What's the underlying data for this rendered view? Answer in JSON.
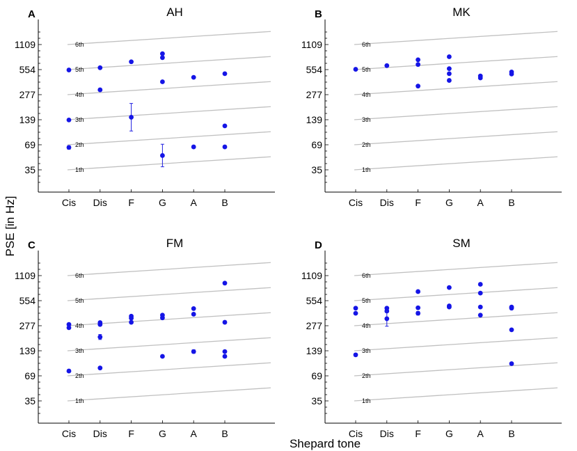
{
  "figure": {
    "ylabel": "PSE [in Hz]",
    "xlabel": "Shepard tone"
  },
  "chart_data": [
    {
      "type": "scatter",
      "letter": "A",
      "title": "AH",
      "categories": [
        "Cis",
        "Dis",
        "F",
        "G",
        "A",
        "B"
      ],
      "yticks": [
        "35",
        "69",
        "139",
        "277",
        "554",
        "1109"
      ],
      "octave_labels": [
        "1th",
        "2th",
        "3th",
        "4th",
        "5th",
        "6th"
      ],
      "points": [
        {
          "x": 0,
          "y": 554,
          "err": 0.03
        },
        {
          "x": 0,
          "y": 139,
          "err": 0.05
        },
        {
          "x": 0,
          "y": 65,
          "err": 0.07
        },
        {
          "x": 1,
          "y": 590
        },
        {
          "x": 1,
          "y": 320,
          "err": 0.04
        },
        {
          "x": 2,
          "y": 695,
          "err": 0.03
        },
        {
          "x": 2,
          "y": 150,
          "err": 0.55
        },
        {
          "x": 3,
          "y": 780,
          "err": 0.03
        },
        {
          "x": 3,
          "y": 870
        },
        {
          "x": 3,
          "y": 400
        },
        {
          "x": 3,
          "y": 52,
          "err": 0.45
        },
        {
          "x": 4,
          "y": 452
        },
        {
          "x": 4,
          "y": 66,
          "err": 0.05
        },
        {
          "x": 5,
          "y": 500
        },
        {
          "x": 5,
          "y": 118
        },
        {
          "x": 5,
          "y": 66,
          "err": 0.05
        }
      ]
    },
    {
      "type": "scatter",
      "letter": "B",
      "title": "MK",
      "categories": [
        "Cis",
        "Dis",
        "F",
        "G",
        "A",
        "B"
      ],
      "yticks": [
        "35",
        "69",
        "139",
        "277",
        "554",
        "1109"
      ],
      "octave_labels": [
        "1th",
        "2th",
        "3th",
        "4th",
        "5th",
        "6th"
      ],
      "points": [
        {
          "x": 0,
          "y": 565
        },
        {
          "x": 1,
          "y": 625
        },
        {
          "x": 2,
          "y": 735
        },
        {
          "x": 2,
          "y": 645
        },
        {
          "x": 2,
          "y": 355
        },
        {
          "x": 3,
          "y": 800
        },
        {
          "x": 3,
          "y": 575
        },
        {
          "x": 3,
          "y": 500
        },
        {
          "x": 3,
          "y": 415
        },
        {
          "x": 4,
          "y": 470
        },
        {
          "x": 4,
          "y": 445
        },
        {
          "x": 5,
          "y": 525
        },
        {
          "x": 5,
          "y": 495
        }
      ]
    },
    {
      "type": "scatter",
      "letter": "C",
      "title": "FM",
      "categories": [
        "Cis",
        "Dis",
        "F",
        "G",
        "A",
        "B"
      ],
      "yticks": [
        "35",
        "69",
        "139",
        "277",
        "554",
        "1109"
      ],
      "octave_labels": [
        "1th",
        "2th",
        "3th",
        "4th",
        "5th",
        "6th"
      ],
      "points": [
        {
          "x": 0,
          "y": 290
        },
        {
          "x": 0,
          "y": 265
        },
        {
          "x": 0,
          "y": 80,
          "err": 0.05
        },
        {
          "x": 1,
          "y": 305
        },
        {
          "x": 1,
          "y": 290
        },
        {
          "x": 1,
          "y": 205,
          "err": 0.1
        },
        {
          "x": 1,
          "y": 87
        },
        {
          "x": 2,
          "y": 365
        },
        {
          "x": 2,
          "y": 345
        },
        {
          "x": 2,
          "y": 308,
          "err": 0.04
        },
        {
          "x": 3,
          "y": 375
        },
        {
          "x": 3,
          "y": 348
        },
        {
          "x": 3,
          "y": 120,
          "err": 0.04
        },
        {
          "x": 4,
          "y": 450
        },
        {
          "x": 4,
          "y": 385
        },
        {
          "x": 4,
          "y": 137,
          "err": 0.07
        },
        {
          "x": 5,
          "y": 910
        },
        {
          "x": 5,
          "y": 308,
          "err": 0.04
        },
        {
          "x": 5,
          "y": 137,
          "err": 0.04
        },
        {
          "x": 5,
          "y": 120,
          "err": 0.04
        }
      ]
    },
    {
      "type": "scatter",
      "letter": "D",
      "title": "SM",
      "categories": [
        "Cis",
        "Dis",
        "F",
        "G",
        "A",
        "B"
      ],
      "yticks": [
        "35",
        "69",
        "139",
        "277",
        "554",
        "1109"
      ],
      "octave_labels": [
        "1th",
        "2th",
        "3th",
        "4th",
        "5th",
        "6th"
      ],
      "points": [
        {
          "x": 0,
          "y": 455
        },
        {
          "x": 0,
          "y": 395
        },
        {
          "x": 0,
          "y": 125,
          "err": 0.06
        },
        {
          "x": 1,
          "y": 455,
          "err": 0.04
        },
        {
          "x": 1,
          "y": 420
        },
        {
          "x": 1,
          "y": 340,
          "err": 0.3
        },
        {
          "x": 2,
          "y": 720
        },
        {
          "x": 2,
          "y": 460
        },
        {
          "x": 2,
          "y": 395,
          "err": 0.07
        },
        {
          "x": 3,
          "y": 805
        },
        {
          "x": 3,
          "y": 485
        },
        {
          "x": 3,
          "y": 470
        },
        {
          "x": 4,
          "y": 880
        },
        {
          "x": 4,
          "y": 690
        },
        {
          "x": 4,
          "y": 470
        },
        {
          "x": 4,
          "y": 375
        },
        {
          "x": 5,
          "y": 470
        },
        {
          "x": 5,
          "y": 455
        },
        {
          "x": 5,
          "y": 250
        },
        {
          "x": 5,
          "y": 98
        }
      ]
    }
  ]
}
